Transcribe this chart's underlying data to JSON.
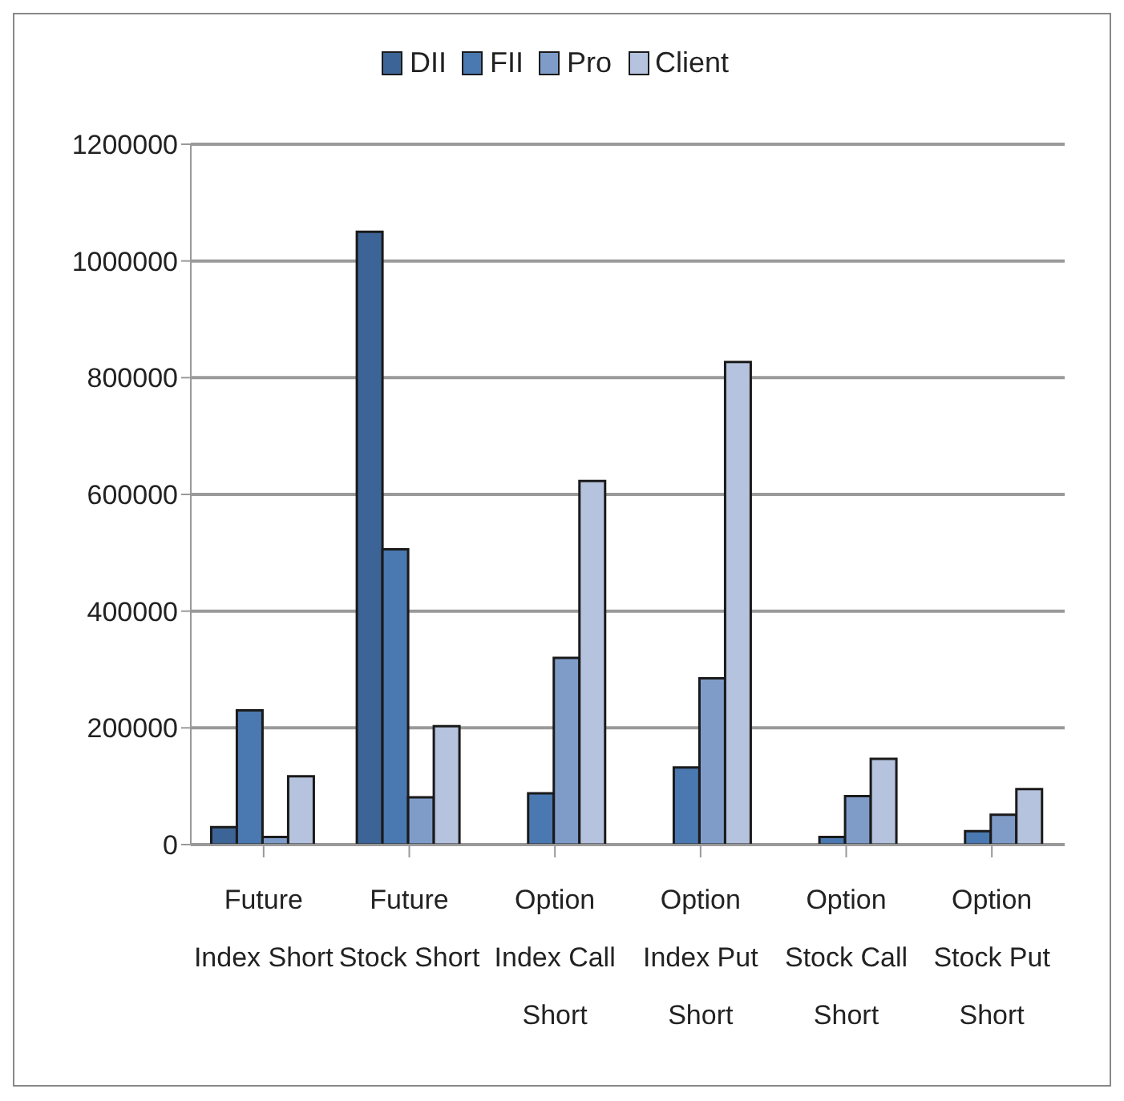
{
  "chart_data": {
    "type": "bar",
    "categories": [
      "Future Index Short",
      "Future Stock Short",
      "Option Index Call Short",
      "Option Index Put Short",
      "Option Stock Call Short",
      "Option Stock Put Short"
    ],
    "series": [
      {
        "name": "DII",
        "color": "#3d6496",
        "values": [
          30000,
          1050000,
          0,
          0,
          0,
          0
        ]
      },
      {
        "name": "FII",
        "color": "#4a78b0",
        "values": [
          230000,
          506000,
          88000,
          132000,
          13000,
          23000
        ]
      },
      {
        "name": "Pro",
        "color": "#7f9cc9",
        "values": [
          13000,
          81000,
          320000,
          285000,
          83000,
          51000
        ]
      },
      {
        "name": "Client",
        "color": "#b5c3de",
        "values": [
          117000,
          203000,
          623000,
          827000,
          147000,
          95000
        ]
      }
    ],
    "ylim": [
      0,
      1200000
    ],
    "yticks": [
      0,
      200000,
      400000,
      600000,
      800000,
      1000000,
      1200000
    ],
    "grid": "y",
    "legend": "top"
  }
}
